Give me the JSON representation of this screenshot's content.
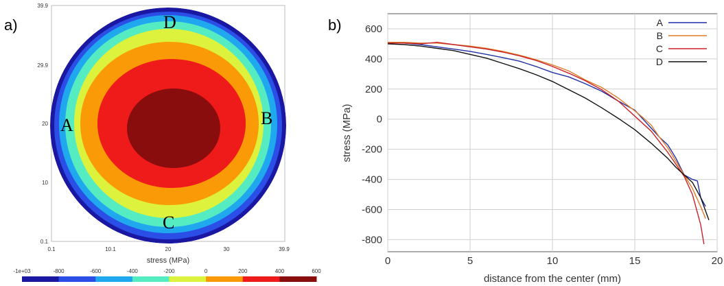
{
  "panel_a": {
    "label": "a)",
    "x_ticks": [
      "0.1",
      "10.1",
      "20",
      "30",
      "39.9"
    ],
    "y_ticks": [
      "39.9",
      "29.9",
      "20",
      "10",
      "0.1"
    ],
    "axis_title": "stress (MPa)",
    "points": [
      "A",
      "B",
      "C",
      "D"
    ],
    "colorbar_ticks": [
      "-1e+03",
      "-800",
      "-600",
      "-400",
      "-200",
      "0",
      "200",
      "400",
      "600"
    ],
    "colorbar_colors": [
      "#1a17a2",
      "#2a4ee6",
      "#1fa8ee",
      "#56ecc2",
      "#dcf23c",
      "#fa9a06",
      "#ef1a1a",
      "#8a0d0d"
    ]
  },
  "chart_data": {
    "type": "line",
    "panel_label": "b)",
    "xlabel": "distance from the center (mm)",
    "ylabel": "stress (MPa)",
    "xlim": [
      0,
      20
    ],
    "ylim": [
      -880,
      700
    ],
    "x_ticks": [
      0,
      5,
      10,
      15,
      20
    ],
    "y_ticks": [
      600,
      400,
      200,
      0,
      -200,
      -400,
      -600,
      -800
    ],
    "grid": true,
    "legend_position": "top-right",
    "series": [
      {
        "name": "A",
        "color": "#1f2fa8",
        "x": [
          0,
          1,
          2,
          3,
          4,
          5,
          6,
          7,
          8,
          9,
          10,
          11,
          12,
          13,
          14,
          15,
          15.5,
          16,
          16.5,
          17,
          17.5,
          18,
          18.5,
          18.8,
          19,
          19.3
        ],
        "y": [
          510,
          505,
          495,
          480,
          465,
          450,
          430,
          408,
          385,
          350,
          310,
          280,
          235,
          185,
          120,
          60,
          0,
          -60,
          -120,
          -170,
          -260,
          -370,
          -400,
          -410,
          -520,
          -580
        ]
      },
      {
        "name": "B",
        "color": "#e07b26",
        "x": [
          0,
          1,
          2,
          3,
          4,
          5,
          6,
          7,
          8,
          9,
          10,
          11,
          12,
          13,
          14,
          15,
          15.5,
          16,
          16.5,
          17,
          17.5,
          18,
          18.5,
          19,
          19.3
        ],
        "y": [
          510,
          510,
          505,
          505,
          495,
          485,
          470,
          450,
          425,
          395,
          360,
          320,
          260,
          210,
          140,
          55,
          10,
          -40,
          -120,
          -190,
          -280,
          -370,
          -460,
          -580,
          -660
        ]
      },
      {
        "name": "C",
        "color": "#c9212a",
        "x": [
          0,
          1,
          2,
          3,
          4,
          5,
          6,
          7,
          8,
          9,
          10,
          11,
          12,
          13,
          14,
          15,
          15.5,
          16,
          16.5,
          17,
          17.5,
          18,
          18.5,
          19,
          19.2
        ],
        "y": [
          505,
          505,
          500,
          510,
          495,
          480,
          465,
          445,
          420,
          390,
          350,
          305,
          255,
          195,
          120,
          20,
          -30,
          -80,
          -150,
          -220,
          -300,
          -380,
          -500,
          -700,
          -830
        ]
      },
      {
        "name": "D",
        "color": "#111111",
        "x": [
          0,
          1,
          2,
          3,
          4,
          5,
          6,
          7,
          8,
          9,
          10,
          11,
          12,
          13,
          14,
          15,
          16,
          17,
          17.5,
          18,
          18.5,
          19,
          19.5
        ],
        "y": [
          500,
          495,
          485,
          470,
          455,
          430,
          405,
          370,
          335,
          295,
          250,
          195,
          140,
          75,
          5,
          -70,
          -160,
          -260,
          -320,
          -370,
          -420,
          -520,
          -670
        ]
      }
    ]
  }
}
